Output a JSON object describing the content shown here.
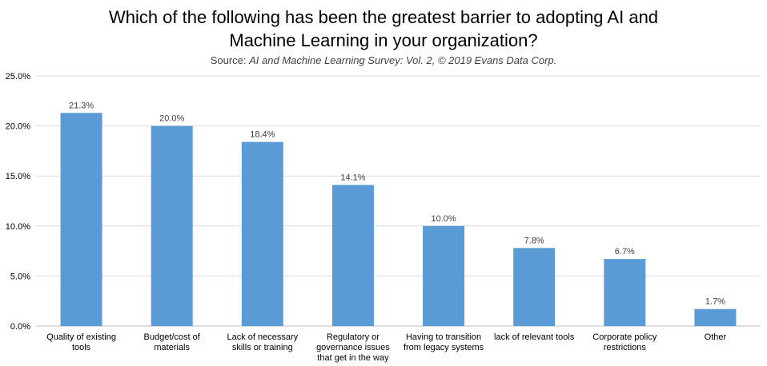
{
  "chart_data": {
    "type": "bar",
    "title_lines": [
      "Which of the following has been the greatest barrier to adopting AI and",
      "Machine Learning in your organization?"
    ],
    "subtitle": {
      "prefix": "Source: ",
      "italic": "AI and Machine Learning Survey: Vol. 2, © 2019 Evans Data Corp."
    },
    "categories": [
      [
        "Quality of existing",
        "tools"
      ],
      [
        "Budget/cost of",
        "materials"
      ],
      [
        "Lack of necessary",
        "skills or training"
      ],
      [
        "Regulatory or",
        "governance issues",
        "that get in the way"
      ],
      [
        "Having to transition",
        "from legacy systems"
      ],
      [
        "lack of relevant tools"
      ],
      [
        "Corporate policy",
        "restrictions"
      ],
      [
        "Other"
      ]
    ],
    "values": [
      21.3,
      20.0,
      18.4,
      14.1,
      10.0,
      7.8,
      6.7,
      1.7
    ],
    "value_labels": [
      "21.3%",
      "20.0%",
      "18.4%",
      "14.1%",
      "10.0%",
      "7.8%",
      "6.7%",
      "1.7%"
    ],
    "ylim": [
      0,
      25
    ],
    "yticks": [
      0,
      5,
      10,
      15,
      20,
      25
    ],
    "ytick_labels": [
      "0.0%",
      "5.0%",
      "10.0%",
      "15.0%",
      "20.0%",
      "25.0%"
    ],
    "grid": true,
    "legend": "none",
    "bar_color": "#5B9BD5",
    "grid_color": "#D9D9D9"
  }
}
